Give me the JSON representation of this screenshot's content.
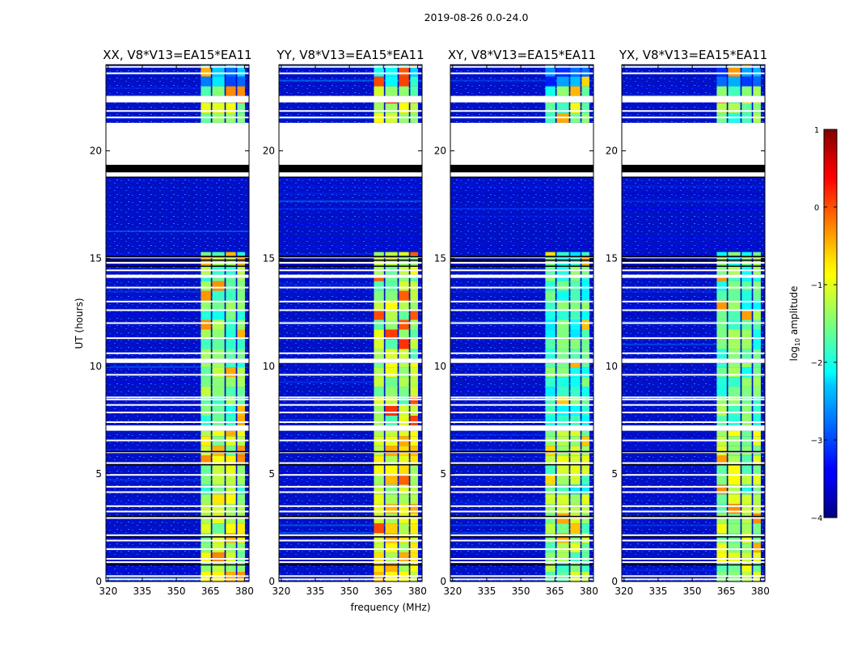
{
  "chart_data": {
    "type": "heatmap",
    "suptitle": "2019-08-26 0.0-24.0",
    "xlabel": "frequency (MHz)",
    "ylabel": "UT (hours)",
    "xlim": [
      319,
      382
    ],
    "ylim": [
      0,
      24
    ],
    "xticks": [
      "320",
      "335",
      "350",
      "365",
      "380"
    ],
    "xtick_values": [
      320,
      335,
      350,
      365,
      380
    ],
    "yticks": [
      "0",
      "5",
      "10",
      "15",
      "20"
    ],
    "ytick_values": [
      0,
      5,
      10,
      15,
      20
    ],
    "colorbar": {
      "label_prefix": "log",
      "label_sub": "10",
      "label_suffix": " amplitude",
      "range": [
        -4,
        1
      ],
      "ticks": [
        "1",
        "0",
        "−1",
        "−2",
        "−3",
        "−4"
      ],
      "tick_values": [
        1,
        0,
        -1,
        -2,
        -3,
        -4
      ],
      "colormap": "jet"
    },
    "rfi_band_mhz": [
      360.5,
      380.5
    ],
    "subband_gaps_mhz": [
      365.5,
      371.5,
      376.5
    ],
    "missing_data_hours": [
      [
        18.8,
        21.3
      ],
      [
        22.25,
        22.55
      ],
      [
        10.15,
        10.35
      ],
      [
        14.1,
        14.25
      ],
      [
        7.0,
        7.25
      ]
    ],
    "panels": [
      {
        "title": "XX, V8*V13=EA15*EA11",
        "background_level": -3.3,
        "band_level": -1.6,
        "peak_level": -0.4
      },
      {
        "title": "YY, V8*V13=EA15*EA11",
        "background_level": -3.2,
        "band_level": -1.3,
        "peak_level": 0.0
      },
      {
        "title": "XY, V8*V13=EA15*EA11",
        "background_level": -3.4,
        "band_level": -1.8,
        "peak_level": -0.6
      },
      {
        "title": "YX, V8*V13=EA15*EA11",
        "background_level": -3.4,
        "band_level": -1.7,
        "peak_level": -0.4
      }
    ]
  }
}
